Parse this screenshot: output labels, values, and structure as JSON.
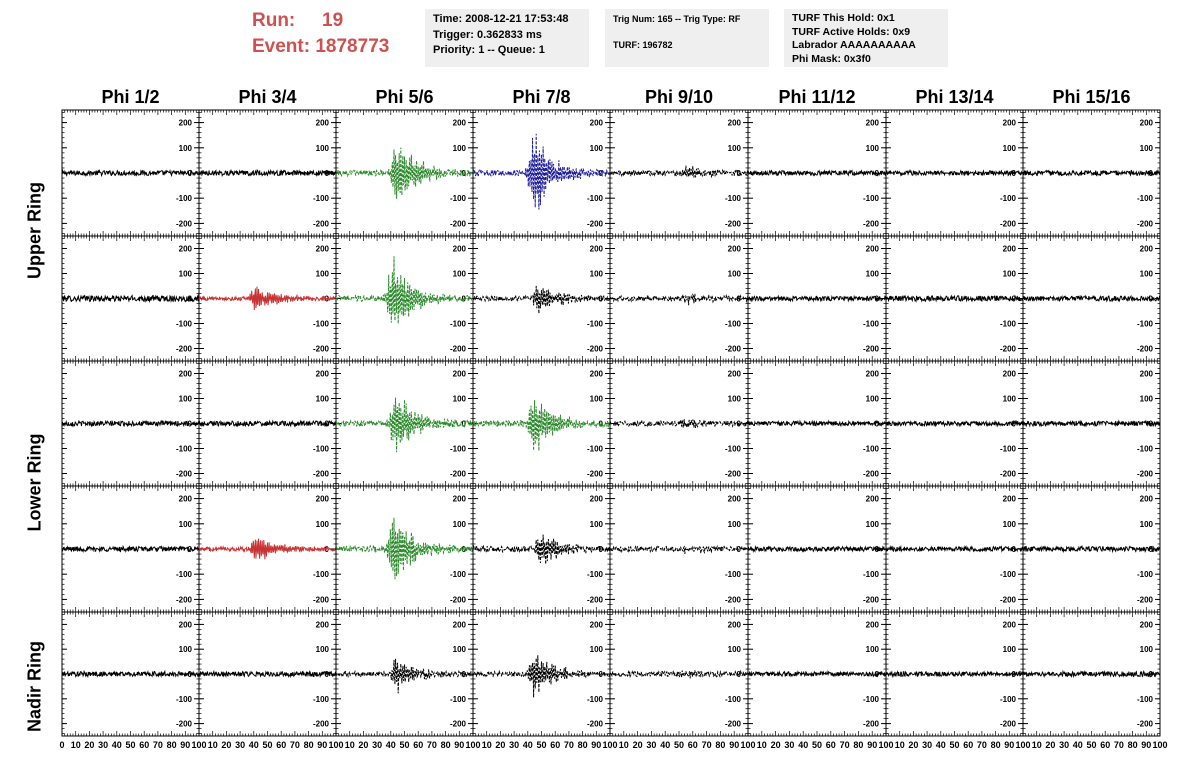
{
  "header": {
    "run_label": "Run:",
    "run_value": "19",
    "event_label": "Event:",
    "event_value": "1878773",
    "info1": [
      "Time: 2008-12-21 17:53:48",
      "Trigger: 0.362833 ms",
      "Priority: 1 -- Queue: 1"
    ],
    "info2": [
      "Trig Num: 165 -- Trig Type: RF",
      "",
      "TURF: 196782"
    ],
    "info3": [
      "TURF This Hold: 0x1",
      "TURF Active Holds: 0x9",
      "Labrador AAAAAAAAAA",
      "Phi Mask: 0x3f0"
    ]
  },
  "chart_data": {
    "type": "line",
    "columns": [
      "Phi 1/2",
      "Phi 3/4",
      "Phi 5/6",
      "Phi 7/8",
      "Phi 9/10",
      "Phi 11/12",
      "Phi 13/14",
      "Phi 15/16"
    ],
    "ring_labels": [
      "Upper Ring",
      "Lower Ring",
      "Nadir Ring"
    ],
    "xlim": [
      0,
      100
    ],
    "ylim": [
      -250,
      250
    ],
    "y_ticks": [
      "200",
      "100",
      "0",
      "-100",
      "-200"
    ],
    "x_ticks": [
      "0",
      "10",
      "20",
      "30",
      "40",
      "50",
      "60",
      "70",
      "80",
      "90",
      "100"
    ],
    "colors": {
      "normal": "#000000",
      "triggered": "#c83232",
      "l1": "#2a8a2a",
      "l2": "#1c1c9c"
    },
    "panels": [
      [
        {
          "style": "solid",
          "color": "normal",
          "amp": 10,
          "burst": 0,
          "center": 0
        },
        {
          "style": "solid",
          "color": "normal",
          "amp": 10,
          "burst": 0,
          "center": 0
        },
        {
          "style": "dashed",
          "color": "l1",
          "amp": 12,
          "burst": 160,
          "center": 45
        },
        {
          "style": "dashed",
          "color": "l2",
          "amp": 12,
          "burst": 180,
          "center": 45
        },
        {
          "style": "dashed",
          "color": "normal",
          "amp": 10,
          "burst": 30,
          "center": 55
        },
        {
          "style": "solid",
          "color": "normal",
          "amp": 9,
          "burst": 0,
          "center": 0
        },
        {
          "style": "solid",
          "color": "normal",
          "amp": 9,
          "burst": 0,
          "center": 0
        },
        {
          "style": "solid",
          "color": "normal",
          "amp": 10,
          "burst": 0,
          "center": 0
        }
      ],
      [
        {
          "style": "solid",
          "color": "normal",
          "amp": 12,
          "burst": 0,
          "center": 0
        },
        {
          "style": "solid",
          "color": "triggered",
          "amp": 8,
          "burst": 60,
          "center": 42
        },
        {
          "style": "dashed",
          "color": "l1",
          "amp": 12,
          "burst": 180,
          "center": 42
        },
        {
          "style": "dashed",
          "color": "normal",
          "amp": 10,
          "burst": 70,
          "center": 48
        },
        {
          "style": "dashed",
          "color": "normal",
          "amp": 10,
          "burst": 20,
          "center": 55
        },
        {
          "style": "solid",
          "color": "normal",
          "amp": 9,
          "burst": 0,
          "center": 0
        },
        {
          "style": "solid",
          "color": "normal",
          "amp": 11,
          "burst": 0,
          "center": 0
        },
        {
          "style": "solid",
          "color": "normal",
          "amp": 10,
          "burst": 0,
          "center": 0
        }
      ],
      [
        {
          "style": "solid",
          "color": "normal",
          "amp": 10,
          "burst": 0,
          "center": 0
        },
        {
          "style": "solid",
          "color": "normal",
          "amp": 10,
          "burst": 0,
          "center": 0
        },
        {
          "style": "dashed",
          "color": "l1",
          "amp": 12,
          "burst": 140,
          "center": 44
        },
        {
          "style": "dashed",
          "color": "l1",
          "amp": 12,
          "burst": 140,
          "center": 45
        },
        {
          "style": "dashed",
          "color": "normal",
          "amp": 10,
          "burst": 20,
          "center": 55
        },
        {
          "style": "solid",
          "color": "normal",
          "amp": 9,
          "burst": 0,
          "center": 0
        },
        {
          "style": "solid",
          "color": "normal",
          "amp": 9,
          "burst": 0,
          "center": 0
        },
        {
          "style": "solid",
          "color": "normal",
          "amp": 10,
          "burst": 0,
          "center": 0
        }
      ],
      [
        {
          "style": "solid",
          "color": "normal",
          "amp": 10,
          "burst": 0,
          "center": 0
        },
        {
          "style": "solid",
          "color": "triggered",
          "amp": 8,
          "burst": 60,
          "center": 42
        },
        {
          "style": "dashed",
          "color": "l1",
          "amp": 12,
          "burst": 180,
          "center": 42
        },
        {
          "style": "dashed",
          "color": "normal",
          "amp": 12,
          "burst": 70,
          "center": 50
        },
        {
          "style": "dashed",
          "color": "normal",
          "amp": 10,
          "burst": 15,
          "center": 55
        },
        {
          "style": "solid",
          "color": "normal",
          "amp": 9,
          "burst": 0,
          "center": 0
        },
        {
          "style": "solid",
          "color": "normal",
          "amp": 9,
          "burst": 0,
          "center": 0
        },
        {
          "style": "solid",
          "color": "normal",
          "amp": 10,
          "burst": 0,
          "center": 0
        }
      ],
      [
        {
          "style": "solid",
          "color": "normal",
          "amp": 10,
          "burst": 0,
          "center": 0
        },
        {
          "style": "solid",
          "color": "normal",
          "amp": 10,
          "burst": 0,
          "center": 0
        },
        {
          "style": "dashed",
          "color": "normal",
          "amp": 10,
          "burst": 80,
          "center": 45
        },
        {
          "style": "dashed",
          "color": "normal",
          "amp": 10,
          "burst": 100,
          "center": 45
        },
        {
          "style": "dashed",
          "color": "normal",
          "amp": 10,
          "burst": 15,
          "center": 55
        },
        {
          "style": "solid",
          "color": "normal",
          "amp": 9,
          "burst": 0,
          "center": 0
        },
        {
          "style": "solid",
          "color": "normal",
          "amp": 9,
          "burst": 0,
          "center": 0
        },
        {
          "style": "solid",
          "color": "normal",
          "amp": 10,
          "burst": 0,
          "center": 0
        }
      ]
    ]
  }
}
